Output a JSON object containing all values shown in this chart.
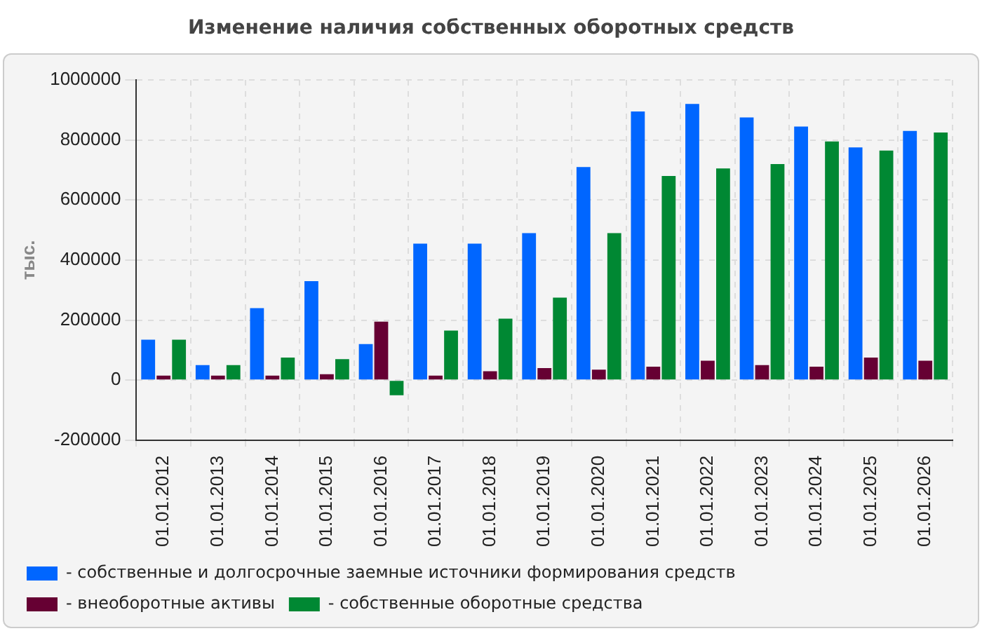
{
  "chart_data": {
    "type": "bar",
    "title": "Изменение наличия собственных оборотных средств",
    "ylabel": "тыс.",
    "categories": [
      "01.01.2012",
      "01.01.2013",
      "01.01.2014",
      "01.01.2015",
      "01.01.2016",
      "01.01.2017",
      "01.01.2018",
      "01.01.2019",
      "01.01.2020",
      "01.01.2021",
      "01.01.2022",
      "01.01.2023",
      "01.01.2024",
      "01.01.2025",
      "01.01.2026"
    ],
    "series": [
      {
        "name": "- собственные и долгосрочные заемные источники формирования средств",
        "color": "#0066ff",
        "values": [
          135000,
          50000,
          240000,
          330000,
          120000,
          455000,
          455000,
          490000,
          710000,
          895000,
          920000,
          875000,
          845000,
          775000,
          830000
        ]
      },
      {
        "name": "- внеоборотные активы",
        "color": "#660033",
        "values": [
          15000,
          15000,
          15000,
          20000,
          195000,
          15000,
          30000,
          40000,
          35000,
          45000,
          65000,
          50000,
          45000,
          75000,
          65000
        ]
      },
      {
        "name": "- собственные оборотные средства",
        "color": "#008833",
        "values": [
          135000,
          50000,
          75000,
          70000,
          -50000,
          165000,
          205000,
          275000,
          490000,
          680000,
          705000,
          720000,
          795000,
          765000,
          825000
        ]
      }
    ],
    "ylim": [
      -200000,
      1000000
    ],
    "yticks": [
      -200000,
      0,
      200000,
      400000,
      600000,
      800000,
      1000000
    ],
    "grid": true,
    "legend": "bottom"
  }
}
